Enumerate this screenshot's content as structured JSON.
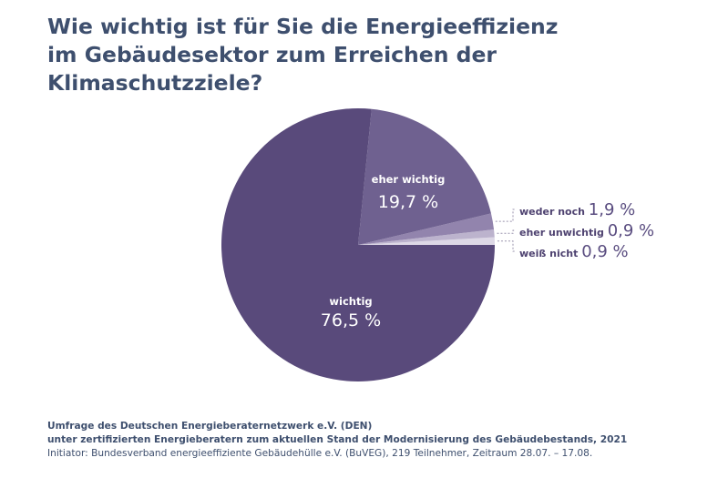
{
  "title_lines": [
    "Wie wichtig ist für Sie die Energieeffizienz",
    "im Gebäudesektor zum Erreichen der",
    "Klimaschutzziele?"
  ],
  "chart_data": {
    "type": "pie",
    "title": "Wie wichtig ist für Sie die Energieeffizienz im Gebäudesektor zum Erreichen der Klimaschutzziele?",
    "unit": "%",
    "slices": [
      {
        "label": "weiß nicht",
        "value": 0.9,
        "value_label": "0,9 %",
        "color": "#ddd8e6"
      },
      {
        "label": "eher unwichtig",
        "value": 0.9,
        "value_label": "0,9 %",
        "color": "#bcb3cd"
      },
      {
        "label": "weder noch",
        "value": 1.9,
        "value_label": "1,9 %",
        "color": "#9284ad"
      },
      {
        "label": "eher wichtig",
        "value": 19.7,
        "value_label": "19,7 %",
        "color": "#6f6190"
      },
      {
        "label": "wichtig",
        "value": 76.5,
        "value_label": "76,5 %",
        "color": "#594a7b"
      }
    ],
    "start": "3 o'clock, counterclockwise"
  },
  "footer": {
    "line1": "Umfrage des Deutschen Energieberaternetzwerk e.V. (DEN)",
    "line2": "unter zertifizierten Energieberatern zum aktuellen Stand der Modernisierung des Gebäudebestands, 2021",
    "line3": "Initiator: Bundesverband energieeffiziente Gebäudehülle e.V. (BuVEG), 219 Teilnehmer, Zeitraum 28.07. – 17.08."
  }
}
